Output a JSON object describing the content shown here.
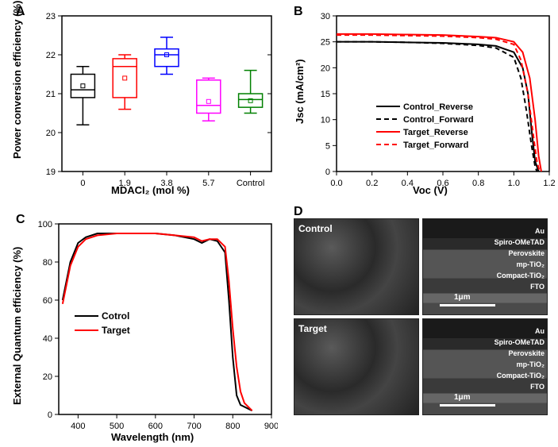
{
  "panels": {
    "A": {
      "label": "A",
      "xlabel": "MDACl₂ (mol %)",
      "ylabel": "Power conversion efficiency (%)"
    },
    "B": {
      "label": "B",
      "xlabel": "Voc (V)",
      "ylabel": "Jsc (mA/cm²)"
    },
    "C": {
      "label": "C",
      "xlabel": "Wavelength (nm)",
      "ylabel": "External Quantum efficiency (%)"
    },
    "D": {
      "label": "D"
    }
  },
  "chartA": {
    "type": "boxplot",
    "categories": [
      "0",
      "1.9",
      "3.8",
      "5.7",
      "Control"
    ],
    "ylim": [
      19,
      23
    ],
    "ytick_step": 1,
    "boxes": [
      {
        "q1": 20.9,
        "median": 21.1,
        "q3": 21.5,
        "whisker_lo": 20.2,
        "whisker_hi": 21.7,
        "mean": 21.2,
        "color": "#000000"
      },
      {
        "q1": 20.9,
        "median": 21.7,
        "q3": 21.9,
        "whisker_lo": 20.6,
        "whisker_hi": 22.0,
        "mean": 21.4,
        "color": "#ff0000"
      },
      {
        "q1": 21.7,
        "median": 22.0,
        "q3": 22.15,
        "whisker_lo": 21.5,
        "whisker_hi": 22.45,
        "mean": 22.0,
        "color": "#0000ff"
      },
      {
        "q1": 20.5,
        "median": 20.7,
        "q3": 21.35,
        "whisker_lo": 20.3,
        "whisker_hi": 21.4,
        "mean": 20.8,
        "color": "#ff00ff"
      },
      {
        "q1": 20.65,
        "median": 20.85,
        "q3": 21.0,
        "whisker_lo": 20.5,
        "whisker_hi": 21.6,
        "mean": 20.82,
        "color": "#008000"
      }
    ],
    "background_color": "#ffffff",
    "border_color": "#000000",
    "label_fontsize": 13,
    "tick_fontsize": 11
  },
  "chartB": {
    "type": "line",
    "xlim": [
      0.0,
      1.2
    ],
    "xtick_step": 0.2,
    "ylim": [
      0,
      30
    ],
    "ytick_step": 5,
    "series": [
      {
        "name": "Control_Reverse",
        "color": "#000000",
        "dash": false,
        "x": [
          0.0,
          0.2,
          0.4,
          0.6,
          0.8,
          0.9,
          1.0,
          1.05,
          1.08,
          1.1,
          1.12,
          1.14
        ],
        "y": [
          25.0,
          25.0,
          24.9,
          24.8,
          24.5,
          24.2,
          23.0,
          20.0,
          15.0,
          8.0,
          2.0,
          0.0
        ]
      },
      {
        "name": "Control_Forward",
        "color": "#000000",
        "dash": true,
        "x": [
          0.0,
          0.2,
          0.4,
          0.6,
          0.8,
          0.9,
          1.0,
          1.04,
          1.07,
          1.1,
          1.12,
          1.13
        ],
        "y": [
          25.0,
          25.0,
          24.9,
          24.7,
          24.3,
          23.8,
          22.0,
          18.0,
          12.0,
          5.0,
          1.0,
          0.0
        ]
      },
      {
        "name": "Target_Reverse",
        "color": "#ff0000",
        "dash": false,
        "x": [
          0.0,
          0.2,
          0.4,
          0.6,
          0.8,
          0.9,
          1.0,
          1.05,
          1.09,
          1.12,
          1.14,
          1.155
        ],
        "y": [
          26.5,
          26.5,
          26.4,
          26.3,
          26.0,
          25.8,
          25.0,
          23.0,
          18.0,
          10.0,
          3.0,
          0.0
        ]
      },
      {
        "name": "Target_Forward",
        "color": "#ff0000",
        "dash": true,
        "x": [
          0.0,
          0.2,
          0.4,
          0.6,
          0.8,
          0.9,
          1.0,
          1.04,
          1.08,
          1.11,
          1.13,
          1.145
        ],
        "y": [
          26.3,
          26.3,
          26.2,
          26.1,
          25.8,
          25.5,
          24.5,
          21.5,
          15.0,
          7.0,
          2.0,
          0.0
        ]
      }
    ],
    "legend_pos": "lower-left",
    "background_color": "#ffffff",
    "border_color": "#000000",
    "line_width": 2,
    "label_fontsize": 13,
    "tick_fontsize": 11
  },
  "chartC": {
    "type": "line",
    "xlim": [
      350,
      900
    ],
    "xticks": [
      400,
      500,
      600,
      700,
      800,
      900
    ],
    "ylim": [
      0,
      100
    ],
    "ytick_step": 20,
    "series": [
      {
        "name": "Cotrol",
        "color": "#000000",
        "x": [
          360,
          380,
          400,
          420,
          450,
          500,
          550,
          600,
          650,
          700,
          720,
          740,
          760,
          780,
          790,
          800,
          810,
          820,
          850
        ],
        "y": [
          60,
          80,
          90,
          93,
          95,
          95,
          95,
          95,
          94,
          92,
          90,
          92,
          91,
          85,
          60,
          30,
          10,
          5,
          2
        ]
      },
      {
        "name": "Target",
        "color": "#ff0000",
        "x": [
          360,
          380,
          400,
          420,
          450,
          500,
          550,
          600,
          650,
          700,
          720,
          740,
          760,
          780,
          790,
          800,
          810,
          820,
          830,
          850
        ],
        "y": [
          58,
          78,
          88,
          92,
          94,
          95,
          95,
          95,
          94,
          93,
          91,
          92,
          92,
          88,
          70,
          45,
          25,
          12,
          6,
          2
        ]
      }
    ],
    "legend_pos": "left-center",
    "background_color": "#ffffff",
    "border_color": "#000000",
    "line_width": 2,
    "label_fontsize": 13,
    "tick_fontsize": 11
  },
  "panelD": {
    "images": [
      {
        "row": "top",
        "col": "left",
        "label": "Control"
      },
      {
        "row": "top",
        "col": "right",
        "layers": [
          "Au",
          "Spiro-OMeTAD",
          "Perovskite",
          "mp-TiO₂",
          "Compact-TiO₂",
          "FTO"
        ],
        "scalebar": "1μm"
      },
      {
        "row": "bottom",
        "col": "left",
        "label": "Target"
      },
      {
        "row": "bottom",
        "col": "right",
        "layers": [
          "Au",
          "Spiro-OMeTAD",
          "Perovskite",
          "mp-TiO₂",
          "Compact-TiO₂",
          "FTO"
        ],
        "scalebar": "1μm"
      }
    ],
    "background_color": "#3a3a3a"
  }
}
